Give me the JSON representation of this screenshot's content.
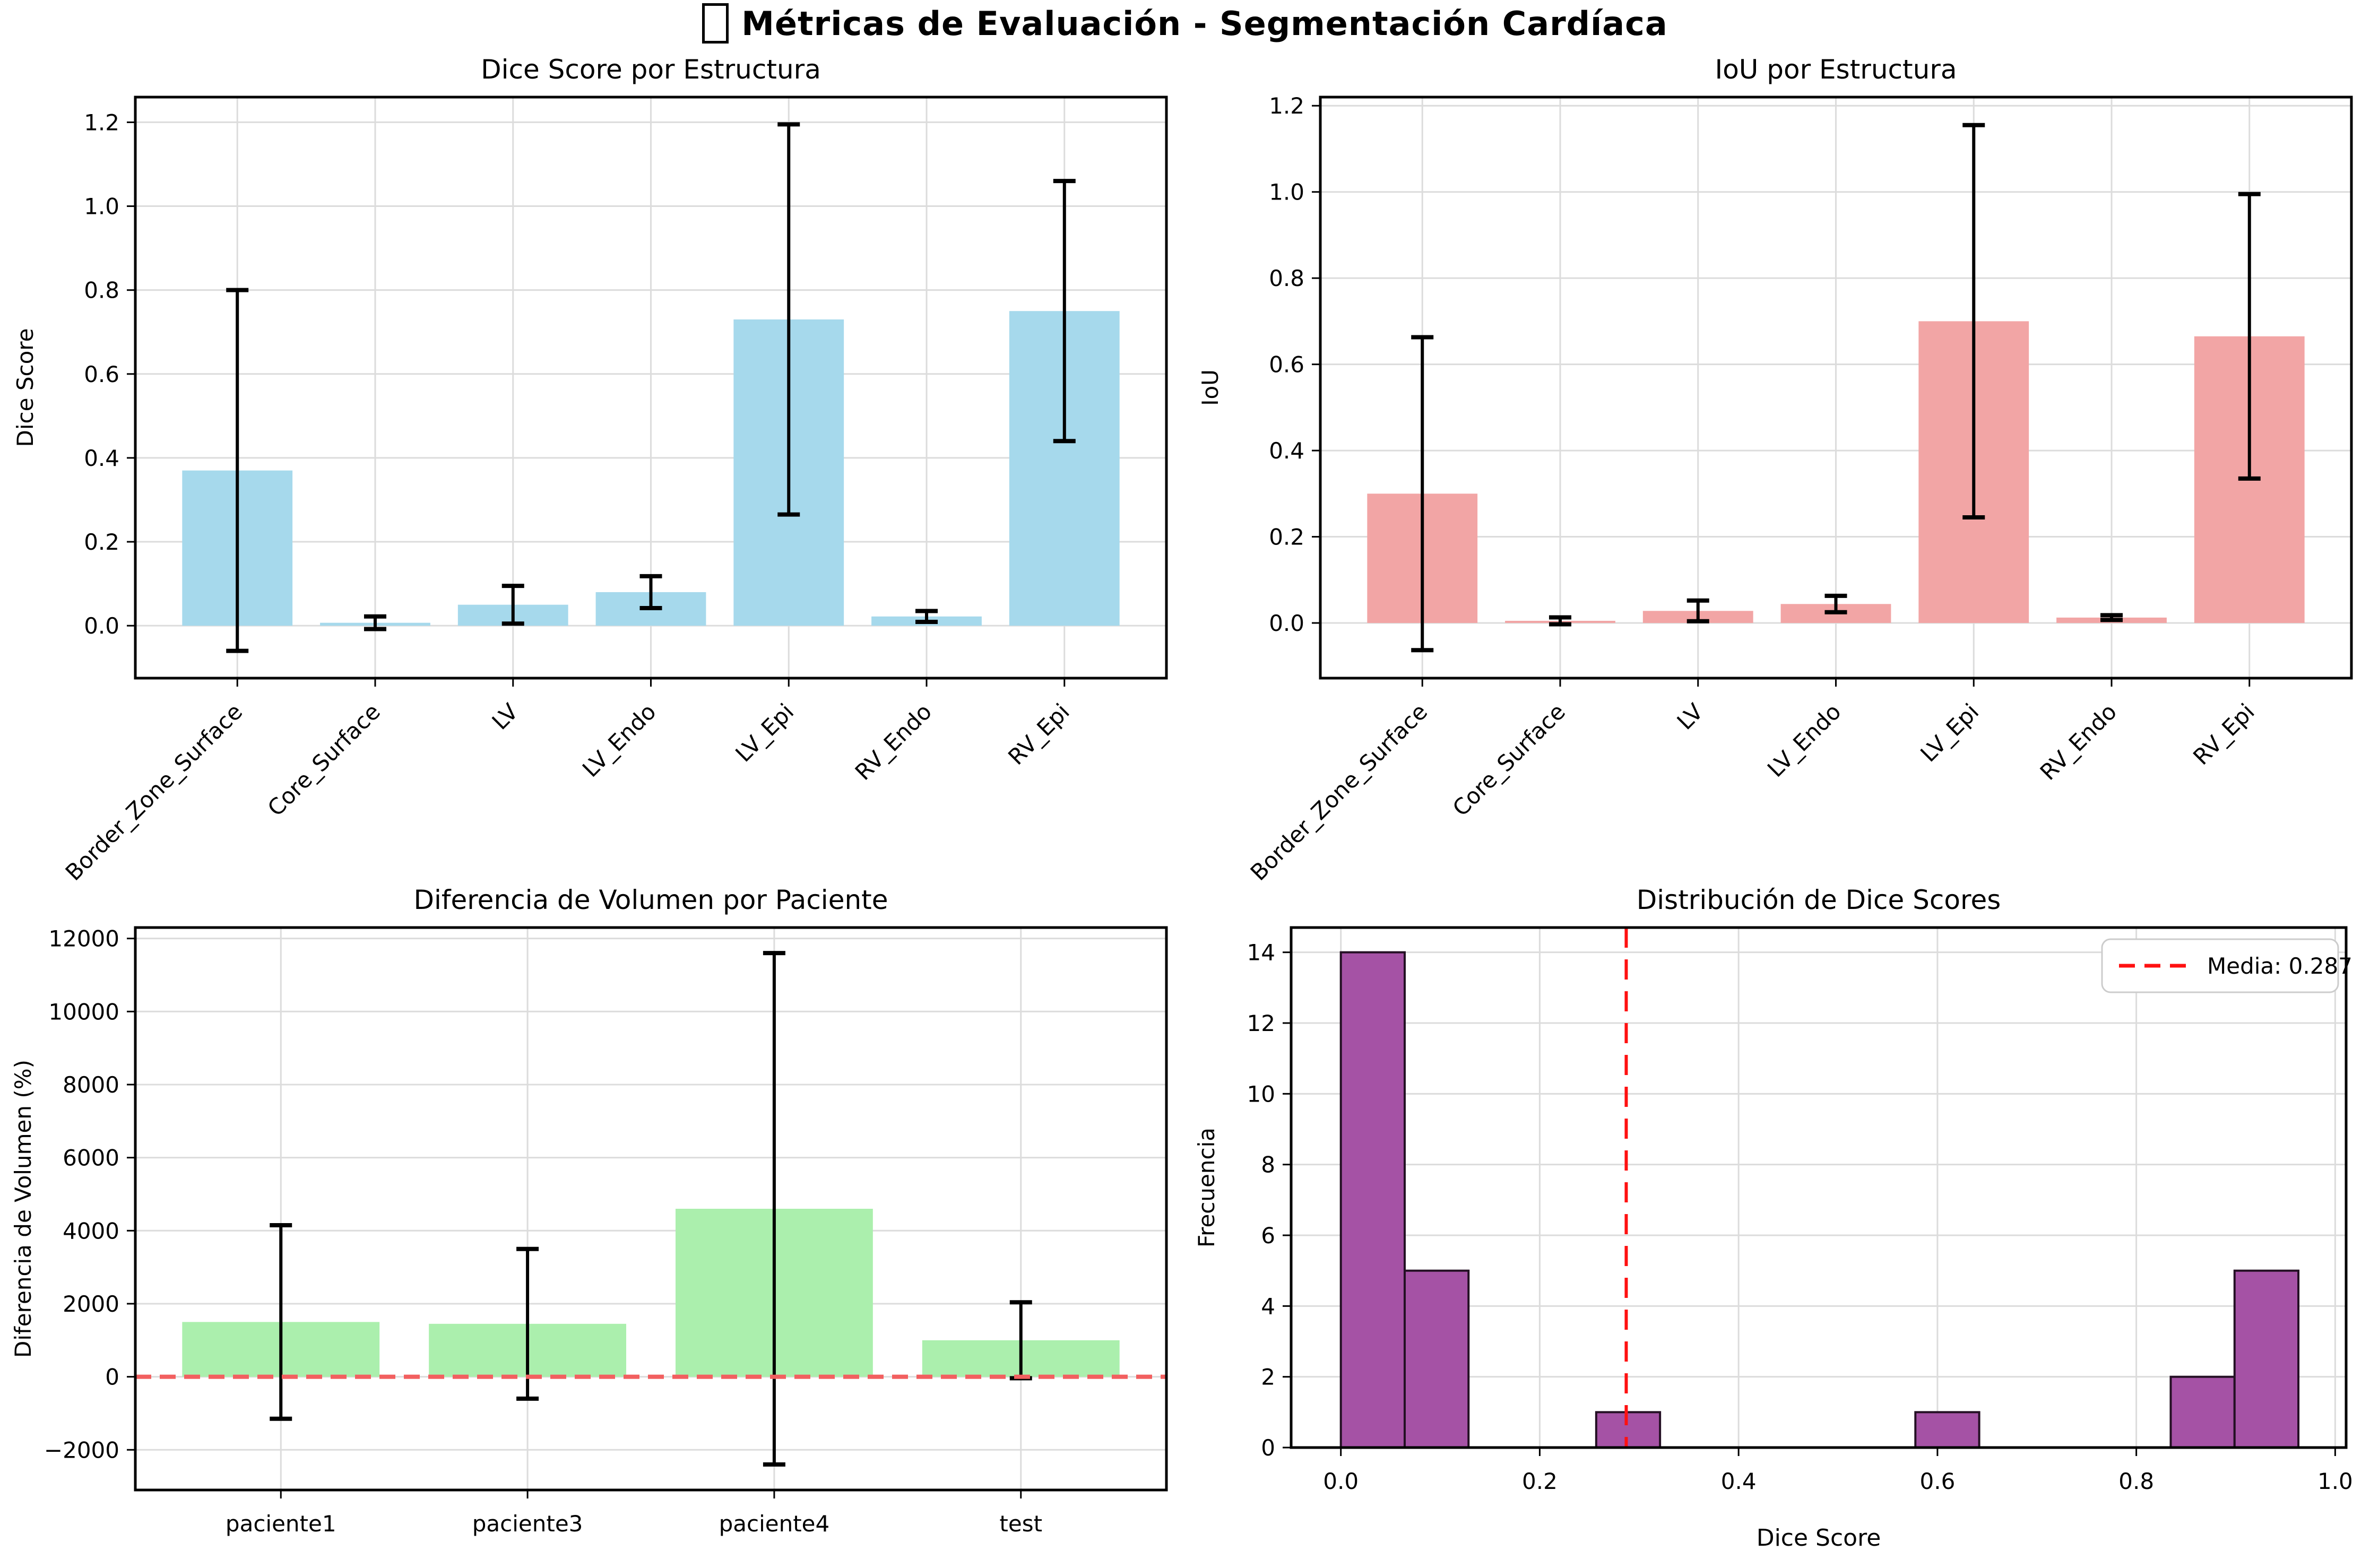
{
  "figure": {
    "title": "Métricas de Evaluación - Segmentación Cardíaca",
    "title_missing_glyph": "□"
  },
  "chart_data": [
    {
      "type": "bar",
      "title": "Dice Score por Estructura",
      "xlabel": "",
      "ylabel": "Dice Score",
      "categories": [
        "Border_Zone_Surface",
        "Core_Surface",
        "LV",
        "LV_Endo",
        "LV_Epi",
        "RV_Endo",
        "RV_Epi"
      ],
      "values": [
        0.37,
        0.007,
        0.05,
        0.08,
        0.73,
        0.022,
        0.75
      ],
      "errors": [
        0.43,
        0.015,
        0.045,
        0.038,
        0.465,
        0.013,
        0.31
      ],
      "bar_color": "#a6d9ec",
      "error_color": "#000000",
      "ylim": [
        -0.125,
        1.26
      ],
      "yticks": [
        0,
        0.2,
        0.4,
        0.6,
        0.8,
        1.0,
        1.2
      ],
      "ytick_labels": [
        "0.0",
        "0.2",
        "0.4",
        "0.6",
        "0.8",
        "1.0",
        "1.2"
      ],
      "xtick_rotation": 45,
      "grid": true
    },
    {
      "type": "bar",
      "title": "IoU por Estructura",
      "xlabel": "",
      "ylabel": "IoU",
      "categories": [
        "Border_Zone_Surface",
        "Core_Surface",
        "LV",
        "LV_Endo",
        "LV_Epi",
        "RV_Endo",
        "RV_Epi"
      ],
      "values": [
        0.3,
        0.005,
        0.028,
        0.044,
        0.7,
        0.0125,
        0.665
      ],
      "errors": [
        0.363,
        0.008,
        0.024,
        0.019,
        0.455,
        0.0055,
        0.33
      ],
      "bar_color": "#f2a5a5",
      "error_color": "#000000",
      "ylim": [
        -0.128,
        1.22
      ],
      "yticks": [
        0,
        0.2,
        0.4,
        0.6,
        0.8,
        1.0,
        1.2
      ],
      "ytick_labels": [
        "0.0",
        "0.2",
        "0.4",
        "0.6",
        "0.8",
        "1.0",
        "1.2"
      ],
      "xtick_rotation": 45,
      "grid": true
    },
    {
      "type": "bar",
      "title": "Diferencia de Volumen por Paciente",
      "xlabel": "",
      "ylabel": "Diferencia de Volumen (%)",
      "categories": [
        "paciente1",
        "paciente3",
        "paciente4",
        "test"
      ],
      "values": [
        1500,
        1450,
        4600,
        1000
      ],
      "errors": [
        2650,
        2050,
        7000,
        1040
      ],
      "bar_color": "#abefad",
      "error_color": "#000000",
      "ylim": [
        -3100,
        12300
      ],
      "yticks": [
        -2000,
        0,
        2000,
        4000,
        6000,
        8000,
        10000,
        12000
      ],
      "ytick_labels": [
        "−2000",
        "0",
        "2000",
        "4000",
        "6000",
        "8000",
        "10000",
        "12000"
      ],
      "ref_line": {
        "y": 0,
        "color": "#f25f5f",
        "dash": [
          30,
          16
        ],
        "width": 8
      },
      "xtick_rotation": 0,
      "grid": true
    },
    {
      "type": "histogram",
      "title": "Distribución de Dice Scores",
      "xlabel": "Dice Score",
      "ylabel": "Frecuencia",
      "bin_start": 0.0,
      "bin_width": 0.0642,
      "counts": [
        14,
        5,
        0,
        0,
        1,
        0,
        0,
        0,
        0,
        1,
        0,
        0,
        0,
        2,
        5
      ],
      "bar_color": "#a552a5",
      "bar_edge_color": "#241024",
      "xlim": [
        -0.05,
        1.011
      ],
      "ylim": [
        0,
        14.7
      ],
      "xticks": [
        0,
        0.2,
        0.4,
        0.6,
        0.8,
        1.0
      ],
      "xtick_labels": [
        "0.0",
        "0.2",
        "0.4",
        "0.6",
        "0.8",
        "1.0"
      ],
      "yticks": [
        0,
        2,
        4,
        6,
        8,
        10,
        12,
        14
      ],
      "ytick_labels": [
        "0",
        "2",
        "4",
        "6",
        "8",
        "10",
        "12",
        "14"
      ],
      "mean_line": {
        "x": 0.287,
        "color": "#ff1111",
        "dash": [
          38,
          22
        ],
        "width": 6
      },
      "legend": {
        "label": "Media: 0.287",
        "line_color": "#ff1111",
        "position": "upper-right"
      },
      "grid": true
    }
  ],
  "style": {
    "grid_color": "#dcdcdc",
    "spine_color": "#000000",
    "background": "#ffffff"
  }
}
